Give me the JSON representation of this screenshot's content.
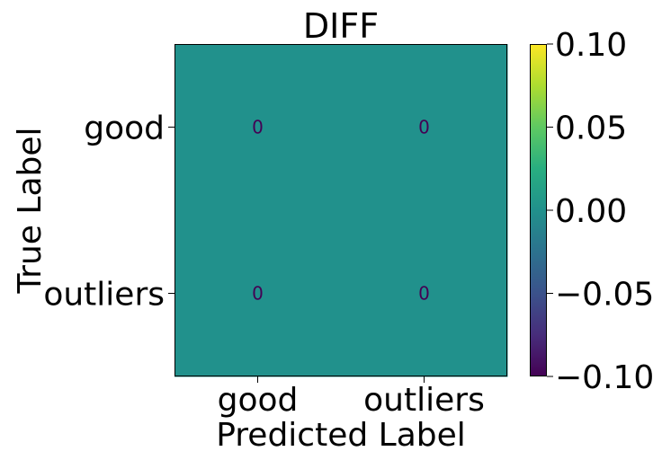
{
  "chart_data": {
    "type": "heatmap",
    "title": "DIFF",
    "xlabel": "Predicted Label",
    "ylabel": "True Label",
    "x_categories": [
      "good",
      "outliers"
    ],
    "y_categories": [
      "good",
      "outliers"
    ],
    "values": [
      [
        0,
        0
      ],
      [
        0,
        0
      ]
    ],
    "colormap": "viridis",
    "clim": [
      -0.1,
      0.1
    ],
    "colorbar_ticks": [
      {
        "value": 0.1,
        "label": "0.10"
      },
      {
        "value": 0.05,
        "label": "0.05"
      },
      {
        "value": 0.0,
        "label": "0.00"
      },
      {
        "value": -0.05,
        "label": "−0.05"
      },
      {
        "value": -0.1,
        "label": "−0.10"
      }
    ],
    "cell_color": "#21918c",
    "annotation_color": "#440154"
  }
}
